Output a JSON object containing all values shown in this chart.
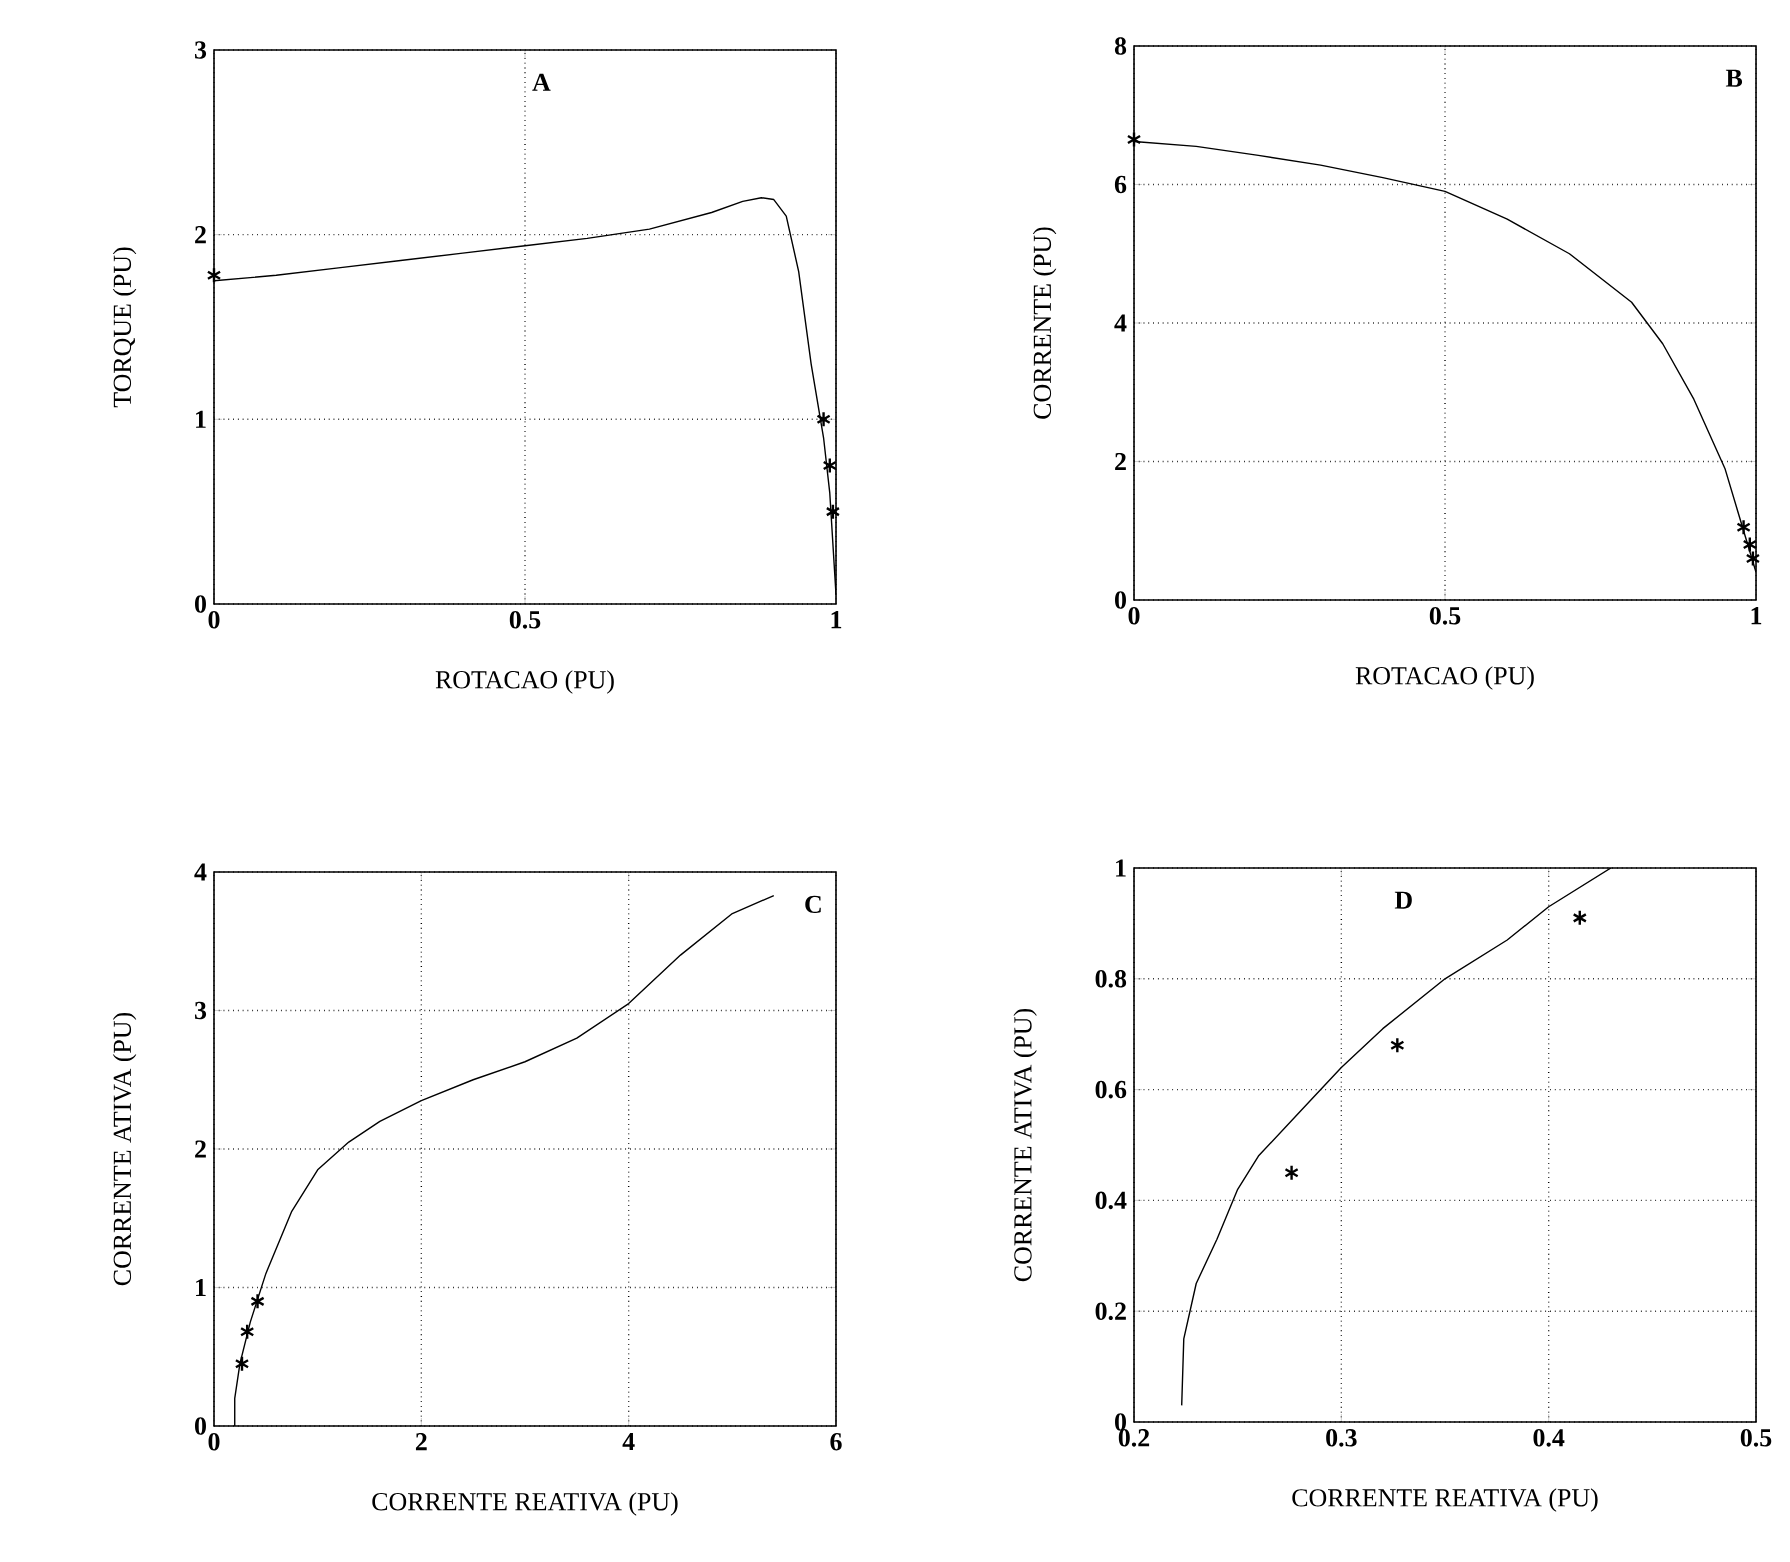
{
  "chart_data": [
    {
      "type": "line",
      "xlabel": "ROTACAO (PU)",
      "ylabel": "TORQUE (PU)",
      "annotations": [
        "A"
      ],
      "xlim": [
        0,
        1
      ],
      "ylim": [
        0,
        3
      ],
      "xticks": [
        0,
        0.5,
        1
      ],
      "yticks": [
        0,
        1,
        2,
        3
      ],
      "grid": true,
      "series": [
        {
          "color": "#000000",
          "x": [
            0,
            0.1,
            0.2,
            0.3,
            0.4,
            0.5,
            0.6,
            0.7,
            0.8,
            0.85,
            0.88,
            0.9,
            0.92,
            0.94,
            0.96,
            0.98,
            0.99,
            1.0
          ],
          "values": [
            1.75,
            1.78,
            1.82,
            1.86,
            1.9,
            1.94,
            1.98,
            2.03,
            2.12,
            2.18,
            2.2,
            2.19,
            2.1,
            1.8,
            1.3,
            0.9,
            0.6,
            0.05
          ]
        },
        {
          "type": "scatter",
          "marker": "cross",
          "color": "#000000",
          "x": [
            0,
            0.98,
            0.99,
            0.995
          ],
          "values": [
            1.78,
            1.0,
            0.75,
            0.5
          ]
        }
      ]
    },
    {
      "type": "line",
      "xlabel": "ROTACAO (PU)",
      "ylabel": "CORRENTE (PU)",
      "annotations": [
        "B"
      ],
      "xlim": [
        0,
        1
      ],
      "ylim": [
        0,
        8
      ],
      "xticks": [
        0,
        0.5,
        1
      ],
      "yticks": [
        0,
        2,
        4,
        6,
        8
      ],
      "grid": true,
      "series": [
        {
          "color": "#000000",
          "x": [
            0,
            0.1,
            0.2,
            0.3,
            0.4,
            0.5,
            0.6,
            0.7,
            0.8,
            0.85,
            0.9,
            0.95,
            0.97,
            0.98,
            0.99,
            1.0
          ],
          "values": [
            6.62,
            6.55,
            6.42,
            6.28,
            6.1,
            5.9,
            5.5,
            5.0,
            4.3,
            3.7,
            2.9,
            1.9,
            1.3,
            1.0,
            0.7,
            0.4
          ]
        },
        {
          "type": "scatter",
          "marker": "cross",
          "color": "#000000",
          "x": [
            0,
            0.98,
            0.99,
            0.995
          ],
          "values": [
            6.65,
            1.05,
            0.8,
            0.6
          ]
        }
      ]
    },
    {
      "type": "line",
      "xlabel": "CORRENTE REATIVA (PU)",
      "ylabel": "CORRENTE ATIVA (PU)",
      "annotations": [
        "C"
      ],
      "xlim": [
        0,
        6
      ],
      "ylim": [
        0,
        4
      ],
      "xticks": [
        0,
        2,
        4,
        6
      ],
      "yticks": [
        0,
        1,
        2,
        3,
        4
      ],
      "grid": true,
      "series": [
        {
          "color": "#000000",
          "x": [
            0.2,
            0.2,
            0.25,
            0.35,
            0.5,
            0.75,
            1.0,
            1.3,
            1.6,
            2.0,
            2.5,
            3.0,
            3.5,
            4.0,
            4.5,
            5.0,
            5.4
          ],
          "values": [
            0,
            0.2,
            0.45,
            0.75,
            1.1,
            1.55,
            1.85,
            2.05,
            2.2,
            2.35,
            2.5,
            2.63,
            2.8,
            3.05,
            3.4,
            3.7,
            3.83
          ]
        },
        {
          "type": "scatter",
          "marker": "cross",
          "color": "#000000",
          "x": [
            0.27,
            0.32,
            0.42
          ],
          "values": [
            0.45,
            0.68,
            0.9
          ]
        }
      ]
    },
    {
      "type": "line",
      "xlabel": "CORRENTE REATIVA (PU)",
      "ylabel": "CORRENTE ATIVA (PU)",
      "annotations": [
        "D"
      ],
      "xlim": [
        0.2,
        0.5
      ],
      "ylim": [
        0,
        1
      ],
      "xticks": [
        0.2,
        0.3,
        0.4,
        0.5
      ],
      "yticks": [
        0,
        0.2,
        0.4,
        0.6,
        0.8,
        1
      ],
      "grid": true,
      "series": [
        {
          "color": "#000000",
          "x": [
            0.223,
            0.224,
            0.23,
            0.24,
            0.25,
            0.26,
            0.28,
            0.3,
            0.32,
            0.35,
            0.38,
            0.4,
            0.43
          ],
          "values": [
            0.03,
            0.15,
            0.25,
            0.33,
            0.42,
            0.48,
            0.56,
            0.64,
            0.71,
            0.8,
            0.87,
            0.93,
            1.0
          ]
        },
        {
          "type": "scatter",
          "marker": "cross",
          "color": "#000000",
          "x": [
            0.276,
            0.327,
            0.415
          ],
          "values": [
            0.45,
            0.68,
            0.91
          ]
        }
      ]
    }
  ]
}
